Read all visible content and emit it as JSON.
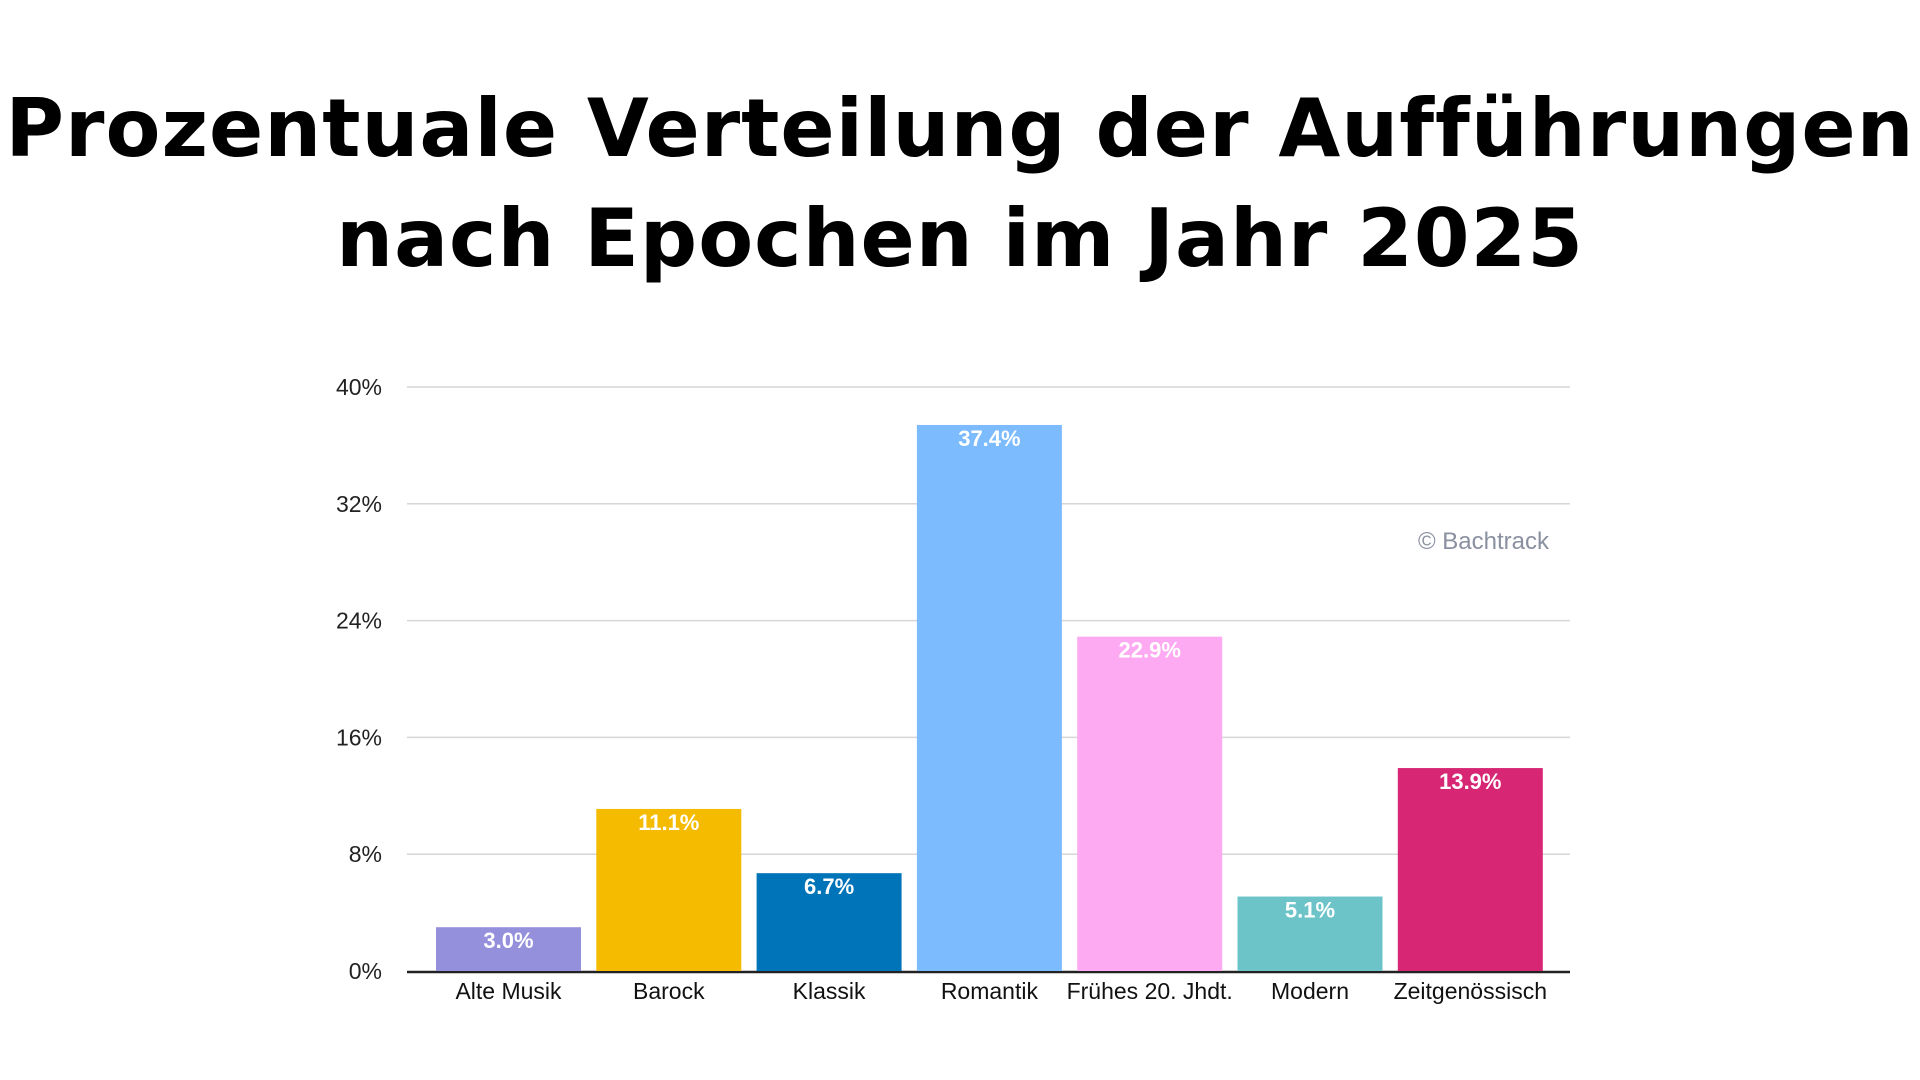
{
  "chart_data": {
    "type": "bar",
    "title_lines": [
      "Prozentuale Verteilung der Aufführungen",
      "nach Epochen im Jahr 2025"
    ],
    "categories": [
      "Alte Musik",
      "Barock",
      "Klassik",
      "Romantik",
      "Frühes 20. Jhdt.",
      "Modern",
      "Zeitgenössisch"
    ],
    "values": [
      3.0,
      11.1,
      6.7,
      37.4,
      22.9,
      5.1,
      13.9
    ],
    "data_labels": [
      "3.0%",
      "11.1%",
      "6.7%",
      "37.4%",
      "22.9%",
      "5.1%",
      "13.9%"
    ],
    "colors": [
      "#9590dc",
      "#f5bb00",
      "#0074b8",
      "#7dbbff",
      "#fdaaf2",
      "#6cc4c9",
      "#d62674"
    ],
    "yticks": [
      0,
      8,
      16,
      24,
      32,
      40
    ],
    "ytick_labels": [
      "0%",
      "8%",
      "16%",
      "24%",
      "32%",
      "40%"
    ],
    "ylim": [
      0,
      40
    ],
    "xlabel": "",
    "ylabel": "",
    "grid": true,
    "watermark": "© Bachtrack"
  }
}
